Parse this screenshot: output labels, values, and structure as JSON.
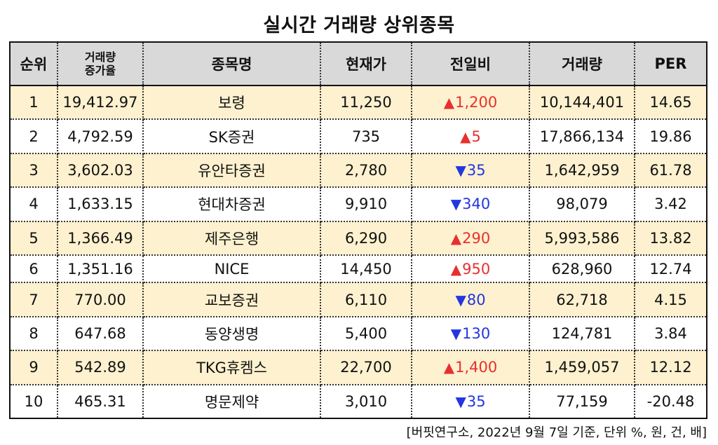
{
  "title": "실시간 거래량 상위종목",
  "headers": {
    "rank": "순위",
    "volume_increase_line1": "거래량",
    "volume_increase_line2": "증가율",
    "name": "종목명",
    "price": "현재가",
    "change": "전일비",
    "volume": "거래량",
    "per": "PER"
  },
  "rows": [
    {
      "rank": "1",
      "increase": "19,412.97",
      "name": "보령",
      "price": "11,250",
      "direction": "up",
      "arrow": "▲",
      "change": "1,200",
      "volume": "10,144,401",
      "per": "14.65"
    },
    {
      "rank": "2",
      "increase": "4,792.59",
      "name": "SK증권",
      "price": "735",
      "direction": "up",
      "arrow": "▲",
      "change": "5",
      "volume": "17,866,134",
      "per": "19.86"
    },
    {
      "rank": "3",
      "increase": "3,602.03",
      "name": "유안타증권",
      "price": "2,780",
      "direction": "down",
      "arrow": "▼",
      "change": "35",
      "volume": "1,642,959",
      "per": "61.78"
    },
    {
      "rank": "4",
      "increase": "1,633.15",
      "name": "현대차증권",
      "price": "9,910",
      "direction": "down",
      "arrow": "▼",
      "change": "340",
      "volume": "98,079",
      "per": "3.42"
    },
    {
      "rank": "5",
      "increase": "1,366.49",
      "name": "제주은행",
      "price": "6,290",
      "direction": "up",
      "arrow": "▲",
      "change": "290",
      "volume": "5,993,586",
      "per": "13.82"
    },
    {
      "rank": "6",
      "increase": "1,351.16",
      "name": "NICE",
      "price": "14,450",
      "direction": "up",
      "arrow": "▲",
      "change": "950",
      "volume": "628,960",
      "per": "12.74"
    },
    {
      "rank": "7",
      "increase": "770.00",
      "name": "교보증권",
      "price": "6,110",
      "direction": "down",
      "arrow": "▼",
      "change": "80",
      "volume": "62,718",
      "per": "4.15"
    },
    {
      "rank": "8",
      "increase": "647.68",
      "name": "동양생명",
      "price": "5,400",
      "direction": "down",
      "arrow": "▼",
      "change": "130",
      "volume": "124,781",
      "per": "3.84"
    },
    {
      "rank": "9",
      "increase": "542.89",
      "name": "TKG휴켐스",
      "price": "22,700",
      "direction": "up",
      "arrow": "▲",
      "change": "1,400",
      "volume": "1,459,057",
      "per": "12.12"
    },
    {
      "rank": "10",
      "increase": "465.31",
      "name": "명문제약",
      "price": "3,010",
      "direction": "down",
      "arrow": "▼",
      "change": "35",
      "volume": "77,159",
      "per": "-20.48"
    }
  ],
  "source": "[버핏연구소, 2022년 9월 7일 기준, 단위 %, 원, 건, 배]",
  "colors": {
    "up": "#e8302f",
    "down": "#2336e0",
    "odd_row": "#fdf1cf",
    "header": "#d9d9d9"
  }
}
